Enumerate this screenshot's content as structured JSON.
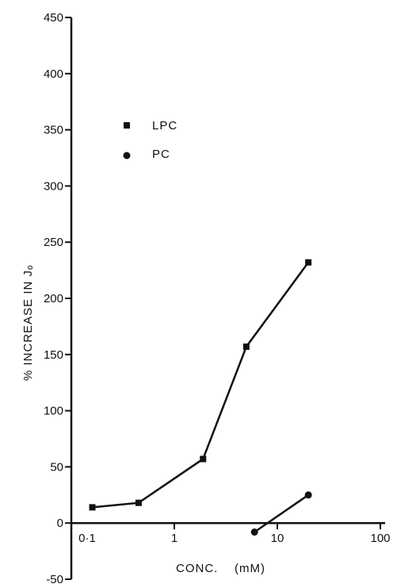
{
  "chart_data": {
    "type": "line",
    "title": "",
    "xlabel": "CONC.    (mM)",
    "ylabel": "% INCREASE IN Jₒ",
    "x_scale": "log",
    "xlim": [
      0.1,
      100
    ],
    "ylim": [
      -50,
      450
    ],
    "x_tick_labels": [
      "0·1",
      "1",
      "10",
      "100"
    ],
    "x_tick_values": [
      0.1,
      1,
      10,
      100
    ],
    "y_tick_values": [
      -50,
      0,
      50,
      100,
      150,
      200,
      250,
      300,
      350,
      400,
      450
    ],
    "y_tick_labels": [
      "-50",
      "0",
      "50",
      "100",
      "150",
      "200",
      "250",
      "300",
      "350",
      "400",
      "450"
    ],
    "grid": false,
    "legend_position": "upper-left",
    "series": [
      {
        "name": "LPC",
        "marker": "square",
        "x": [
          0.16,
          0.45,
          1.9,
          5,
          20
        ],
        "y": [
          14,
          18,
          57,
          157,
          232
        ]
      },
      {
        "name": "PC",
        "marker": "circle",
        "x": [
          6,
          20
        ],
        "y": [
          -8,
          25
        ]
      }
    ]
  }
}
